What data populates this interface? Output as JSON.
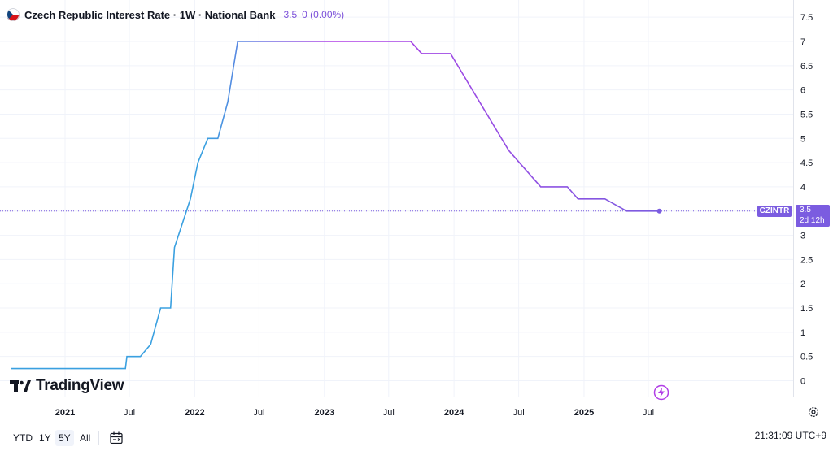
{
  "header": {
    "title": "Czech Republic Interest Rate · 1W · National Bank",
    "value": "3.5",
    "change": "0 (0.00%)"
  },
  "logo": {
    "text": "TradingView"
  },
  "price_tag": {
    "symbol": "CZINTR",
    "value": "3.5",
    "countdown": "2d 12h"
  },
  "bottom": {
    "ranges": [
      "YTD",
      "1Y",
      "5Y",
      "All"
    ],
    "active_range": "5Y",
    "time": "21:31:09 UTC+9"
  },
  "colors": {
    "line_start": "#3aa0e0",
    "line_end": "#7b5ce0",
    "mid": "#b13ee6",
    "accent": "#7b5ce0"
  },
  "chart_data": {
    "type": "line",
    "title": "Czech Republic Interest Rate · 1W · National Bank",
    "xlabel": "",
    "ylabel": "",
    "ylim": [
      -0.2,
      7.8
    ],
    "grid": true,
    "y_ticks": [
      "0",
      "0.5",
      "1",
      "1.5",
      "2",
      "2.5",
      "3",
      "3.5",
      "4",
      "4.5",
      "5",
      "5.5",
      "6",
      "6.5",
      "7",
      "7.5"
    ],
    "x_ticks": [
      {
        "label": "2021",
        "date": "2021-01-01",
        "bold": true
      },
      {
        "label": "Jul",
        "date": "2021-07-01",
        "bold": false
      },
      {
        "label": "2022",
        "date": "2022-01-01",
        "bold": true
      },
      {
        "label": "Jul",
        "date": "2022-07-01",
        "bold": false
      },
      {
        "label": "2023",
        "date": "2023-01-01",
        "bold": true
      },
      {
        "label": "Jul",
        "date": "2023-07-01",
        "bold": false
      },
      {
        "label": "2024",
        "date": "2024-01-01",
        "bold": true
      },
      {
        "label": "Jul",
        "date": "2024-07-01",
        "bold": false
      },
      {
        "label": "2025",
        "date": "2025-01-01",
        "bold": true
      },
      {
        "label": "Jul",
        "date": "2025-07-01",
        "bold": false
      }
    ],
    "series": [
      {
        "points": [
          [
            "2020-08-01",
            0.25
          ],
          [
            "2021-06-20",
            0.25
          ],
          [
            "2021-06-24",
            0.5
          ],
          [
            "2021-08-01",
            0.5
          ],
          [
            "2021-08-30",
            0.75
          ],
          [
            "2021-09-27",
            1.5
          ],
          [
            "2021-10-25",
            1.5
          ],
          [
            "2021-11-05",
            2.75
          ],
          [
            "2021-12-20",
            3.75
          ],
          [
            "2022-01-10",
            4.5
          ],
          [
            "2022-02-07",
            5.0
          ],
          [
            "2022-03-07",
            5.0
          ],
          [
            "2022-04-04",
            5.75
          ],
          [
            "2022-05-02",
            7.0
          ],
          [
            "2023-09-01",
            7.0
          ],
          [
            "2023-10-02",
            6.75
          ],
          [
            "2023-12-22",
            6.75
          ],
          [
            "2024-06-03",
            4.75
          ],
          [
            "2024-09-01",
            4.0
          ],
          [
            "2024-11-15",
            4.0
          ],
          [
            "2024-12-15",
            3.75
          ],
          [
            "2025-03-01",
            3.75
          ],
          [
            "2025-05-01",
            3.5
          ],
          [
            "2025-08-01",
            3.5
          ]
        ]
      }
    ]
  }
}
